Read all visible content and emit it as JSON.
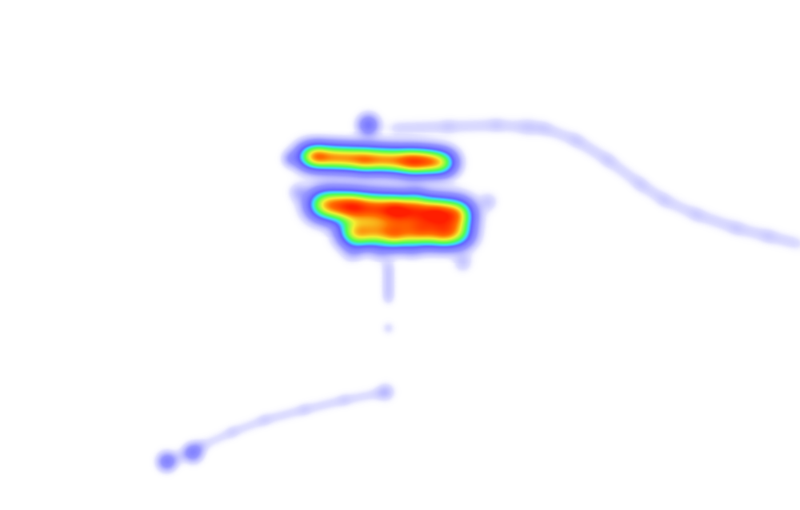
{
  "heatmap": {
    "background": "#ffffff",
    "gradient": [
      "#ffffff",
      "#c8c8ff",
      "#6e6eff",
      "#3ce6ff",
      "#4cff4c",
      "#f5f032",
      "#ff6a00",
      "#ff1a00"
    ],
    "clusters": [
      {
        "label": "upper-band",
        "intensity": "high"
      },
      {
        "label": "middle-band",
        "intensity": "high"
      },
      {
        "label": "lower-band",
        "intensity": "medium-high"
      },
      {
        "label": "upper-trail",
        "intensity": "low"
      },
      {
        "label": "lower-trail",
        "intensity": "low"
      },
      {
        "label": "bottom-left-spots",
        "intensity": "medium"
      }
    ]
  }
}
